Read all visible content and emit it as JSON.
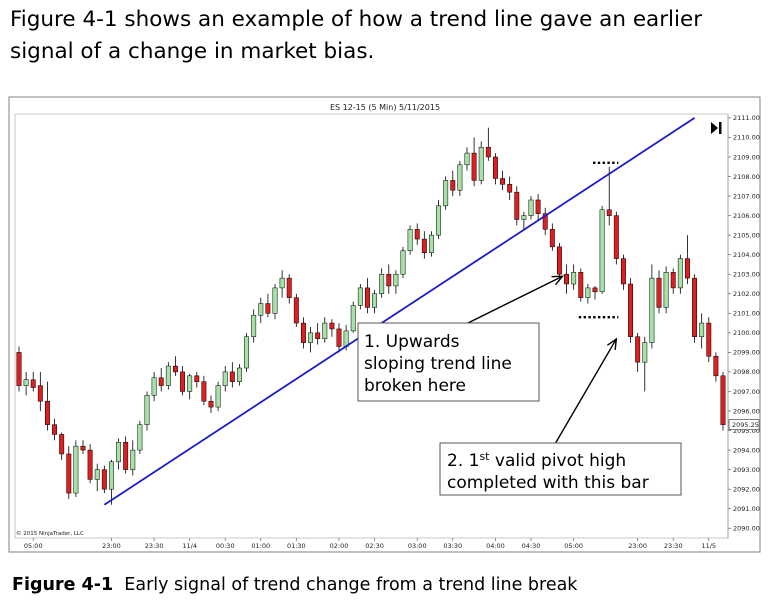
{
  "intro_text": "Figure 4-1 shows an example of how a trend line gave an earlier signal of a change in market bias.",
  "caption": {
    "label": "Figure 4-1",
    "text": "Early signal of trend change from a trend line break"
  },
  "colors": {
    "up": "#a6e1a6",
    "down": "#dd1f1f",
    "trendline": "#1a1ad0",
    "frame": "#808080"
  },
  "chart_data": {
    "type": "candlestick",
    "title": "ES 12-15 (5 Min)  5/11/2015",
    "copyright": "© 2015 NinjaTrader, LLC",
    "last_price_label": "2095.25",
    "ylim": [
      2089.5,
      2111.2
    ],
    "y_ticks": [
      2111,
      2110,
      2109,
      2108,
      2107,
      2106,
      2105,
      2104,
      2103,
      2102,
      2101,
      2100,
      2099,
      2098,
      2097,
      2096,
      2095,
      2094,
      2093,
      2092,
      2091,
      2090
    ],
    "y_tick_labels": [
      "2111.00",
      "2110.00",
      "2109.00",
      "2108.00",
      "2107.00",
      "2106.00",
      "2105.00",
      "2104.00",
      "2103.00",
      "2102.00",
      "2101.00",
      "2100.00",
      "2099.00",
      "2098.00",
      "2097.00",
      "2096.00",
      "2095.00",
      "2094.00",
      "2093.00",
      "2092.00",
      "2091.00",
      "2090.00"
    ],
    "x_ticks": [
      {
        "bar": 2,
        "label": "05:00"
      },
      {
        "bar": 13,
        "label": "23:00"
      },
      {
        "bar": 19,
        "label": "23:30"
      },
      {
        "bar": 24,
        "label": "11/4"
      },
      {
        "bar": 29,
        "label": "00:30"
      },
      {
        "bar": 34,
        "label": "01:00"
      },
      {
        "bar": 39,
        "label": "01:30"
      },
      {
        "bar": 45,
        "label": "02:00"
      },
      {
        "bar": 50,
        "label": "02:30"
      },
      {
        "bar": 56,
        "label": "03:00"
      },
      {
        "bar": 61,
        "label": "03:30"
      },
      {
        "bar": 67,
        "label": "04:00"
      },
      {
        "bar": 72,
        "label": "04:30"
      },
      {
        "bar": 78,
        "label": "05:00"
      },
      {
        "bar": 87,
        "label": "23:00"
      },
      {
        "bar": 92,
        "label": "23:30"
      },
      {
        "bar": 97,
        "label": "11/5"
      }
    ],
    "candles": [
      [
        2099.0,
        2099.3,
        2097.0,
        2097.3
      ],
      [
        2097.3,
        2098.0,
        2096.8,
        2097.6
      ],
      [
        2097.6,
        2098.0,
        2097.0,
        2097.2
      ],
      [
        2097.3,
        2098.0,
        2096.0,
        2096.5
      ],
      [
        2096.5,
        2097.5,
        2095.0,
        2095.3
      ],
      [
        2095.3,
        2095.6,
        2094.5,
        2094.8
      ],
      [
        2094.8,
        2094.9,
        2093.5,
        2093.8
      ],
      [
        2093.8,
        2094.2,
        2091.5,
        2091.8
      ],
      [
        2091.8,
        2094.5,
        2091.6,
        2094.2
      ],
      [
        2094.2,
        2094.5,
        2093.8,
        2094.0
      ],
      [
        2094.0,
        2094.3,
        2092.3,
        2092.5
      ],
      [
        2092.5,
        2093.3,
        2091.9,
        2093.0
      ],
      [
        2093.0,
        2093.2,
        2091.8,
        2092.0
      ],
      [
        2092.0,
        2093.5,
        2091.2,
        2093.4
      ],
      [
        2093.4,
        2094.6,
        2093.0,
        2094.4
      ],
      [
        2094.4,
        2094.7,
        2092.8,
        2093.0
      ],
      [
        2093.0,
        2094.5,
        2092.7,
        2094.0
      ],
      [
        2094.0,
        2095.5,
        2093.8,
        2095.3
      ],
      [
        2095.3,
        2097.0,
        2095.0,
        2096.8
      ],
      [
        2096.8,
        2098.0,
        2096.5,
        2097.7
      ],
      [
        2097.7,
        2098.2,
        2097.0,
        2097.3
      ],
      [
        2097.3,
        2098.5,
        2097.1,
        2098.3
      ],
      [
        2098.3,
        2098.8,
        2097.8,
        2098.0
      ],
      [
        2098.0,
        2098.3,
        2096.8,
        2097.0
      ],
      [
        2097.0,
        2097.9,
        2096.6,
        2097.8
      ],
      [
        2097.8,
        2098.0,
        2097.2,
        2097.5
      ],
      [
        2097.5,
        2097.8,
        2096.3,
        2096.5
      ],
      [
        2096.5,
        2096.8,
        2095.9,
        2096.2
      ],
      [
        2096.2,
        2097.5,
        2096.0,
        2097.3
      ],
      [
        2097.3,
        2098.3,
        2097.0,
        2098.0
      ],
      [
        2098.0,
        2098.5,
        2097.2,
        2097.5
      ],
      [
        2097.5,
        2098.4,
        2097.3,
        2098.2
      ],
      [
        2098.2,
        2100.0,
        2098.0,
        2099.8
      ],
      [
        2099.8,
        2101.2,
        2099.5,
        2100.9
      ],
      [
        2100.9,
        2101.8,
        2100.5,
        2101.5
      ],
      [
        2101.5,
        2102.0,
        2100.8,
        2101.0
      ],
      [
        2101.0,
        2102.5,
        2100.7,
        2102.3
      ],
      [
        2102.3,
        2103.2,
        2101.8,
        2102.8
      ],
      [
        2102.8,
        2103.0,
        2101.5,
        2101.8
      ],
      [
        2101.8,
        2102.0,
        2100.3,
        2100.5
      ],
      [
        2100.5,
        2100.8,
        2099.2,
        2099.5
      ],
      [
        2099.5,
        2100.3,
        2099.0,
        2100.0
      ],
      [
        2100.0,
        2100.5,
        2099.4,
        2099.7
      ],
      [
        2099.7,
        2100.8,
        2099.5,
        2100.5
      ],
      [
        2100.5,
        2100.7,
        2099.8,
        2100.2
      ],
      [
        2100.2,
        2100.5,
        2099.0,
        2099.3
      ],
      [
        2099.3,
        2100.4,
        2099.1,
        2100.1
      ],
      [
        2100.1,
        2101.6,
        2100.0,
        2101.4
      ],
      [
        2101.4,
        2102.5,
        2101.2,
        2102.3
      ],
      [
        2102.3,
        2102.8,
        2101.0,
        2101.3
      ],
      [
        2101.3,
        2102.2,
        2101.0,
        2102.0
      ],
      [
        2102.0,
        2103.3,
        2101.8,
        2103.0
      ],
      [
        2103.0,
        2103.5,
        2102.0,
        2102.4
      ],
      [
        2102.4,
        2103.2,
        2102.0,
        2103.0
      ],
      [
        2103.0,
        2104.4,
        2102.8,
        2104.2
      ],
      [
        2104.2,
        2105.5,
        2104.0,
        2105.3
      ],
      [
        2105.3,
        2105.6,
        2104.5,
        2104.8
      ],
      [
        2104.8,
        2105.2,
        2103.8,
        2104.1
      ],
      [
        2104.1,
        2105.2,
        2103.9,
        2105.0
      ],
      [
        2105.0,
        2106.8,
        2104.8,
        2106.5
      ],
      [
        2106.5,
        2108.0,
        2106.3,
        2107.8
      ],
      [
        2107.8,
        2108.3,
        2107.0,
        2107.3
      ],
      [
        2107.3,
        2108.8,
        2107.0,
        2108.6
      ],
      [
        2108.6,
        2109.5,
        2108.3,
        2109.2
      ],
      [
        2109.2,
        2110.0,
        2107.5,
        2107.8
      ],
      [
        2107.8,
        2109.8,
        2107.6,
        2109.5
      ],
      [
        2109.5,
        2110.5,
        2108.8,
        2109.0
      ],
      [
        2109.0,
        2109.2,
        2107.6,
        2107.9
      ],
      [
        2107.9,
        2108.3,
        2107.3,
        2107.6
      ],
      [
        2107.6,
        2108.0,
        2106.8,
        2107.2
      ],
      [
        2107.2,
        2107.5,
        2105.5,
        2105.8
      ],
      [
        2105.8,
        2106.2,
        2105.3,
        2106.0
      ],
      [
        2106.0,
        2107.0,
        2105.8,
        2106.8
      ],
      [
        2106.8,
        2107.1,
        2105.8,
        2106.1
      ],
      [
        2106.1,
        2106.4,
        2105.0,
        2105.3
      ],
      [
        2105.3,
        2105.6,
        2104.2,
        2104.4
      ],
      [
        2104.4,
        2104.6,
        2102.8,
        2103.0
      ],
      [
        2103.0,
        2103.5,
        2102.0,
        2102.5
      ],
      [
        2102.5,
        2103.5,
        2102.2,
        2103.1
      ],
      [
        2103.1,
        2103.3,
        2101.6,
        2101.8
      ],
      [
        2101.8,
        2102.5,
        2101.5,
        2102.3
      ],
      [
        2102.3,
        2102.4,
        2101.7,
        2102.1
      ],
      [
        2102.1,
        2106.5,
        2102.0,
        2106.3
      ],
      [
        2106.3,
        2108.5,
        2105.5,
        2106.0
      ],
      [
        2106.0,
        2106.2,
        2103.5,
        2103.8
      ],
      [
        2103.8,
        2104.0,
        2102.2,
        2102.5
      ],
      [
        2102.5,
        2102.8,
        2099.5,
        2099.8
      ],
      [
        2099.8,
        2100.0,
        2098.0,
        2098.5
      ],
      [
        2098.5,
        2099.8,
        2097.0,
        2099.5
      ],
      [
        2099.5,
        2103.5,
        2099.2,
        2102.8
      ],
      [
        2102.8,
        2103.2,
        2101.0,
        2101.3
      ],
      [
        2101.3,
        2103.4,
        2101.0,
        2103.1
      ],
      [
        2103.1,
        2103.3,
        2102.0,
        2102.3
      ],
      [
        2102.3,
        2104.0,
        2102.0,
        2103.8
      ],
      [
        2103.8,
        2105.0,
        2102.5,
        2102.8
      ],
      [
        2102.8,
        2103.0,
        2099.5,
        2099.8
      ],
      [
        2099.8,
        2101.0,
        2099.2,
        2100.5
      ],
      [
        2100.5,
        2100.8,
        2098.5,
        2098.8
      ],
      [
        2098.8,
        2099.0,
        2097.5,
        2097.8
      ],
      [
        2097.8,
        2098.0,
        2095.0,
        2095.3
      ]
    ],
    "trend_line": {
      "from": {
        "bar": 12,
        "price": 2091.2
      },
      "to": {
        "bar": 95,
        "price": 2111.0
      }
    },
    "pivot_high_marker": {
      "bar_from": 81,
      "bar_to": 84,
      "price": 2108.7
    },
    "pivot_low_marker": {
      "bar_from": 79,
      "bar_to": 84,
      "price": 2100.8
    },
    "annotations": [
      {
        "lines": [
          "1. Upwards",
          "sloping trend line",
          "broken here"
        ],
        "arrow_to": {
          "bar": 77,
          "price": 2103.0
        }
      },
      {
        "lines": [
          "2. 1",
          "st",
          " valid pivot high",
          "completed with this bar"
        ],
        "arrow_to": {
          "bar": 84,
          "price": 2100.2
        }
      }
    ]
  }
}
